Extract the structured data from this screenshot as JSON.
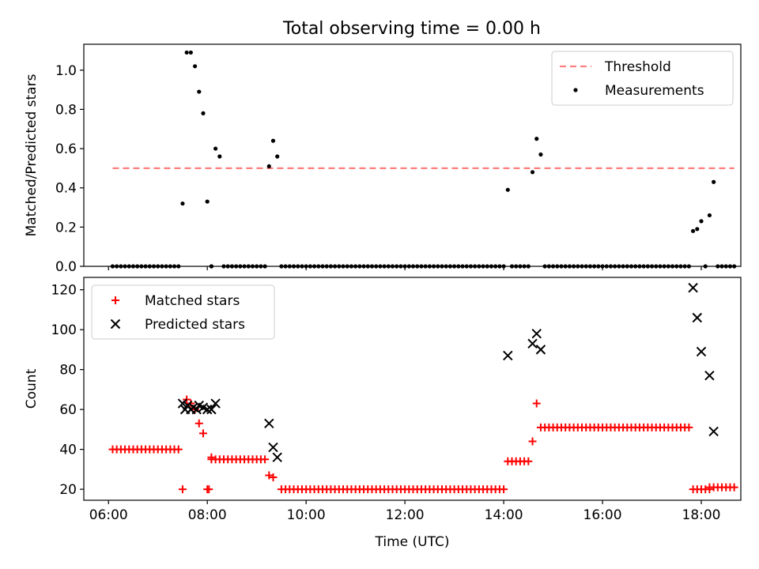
{
  "title": "Total observing time = 0.00 h",
  "chart_data": [
    {
      "type": "scatter",
      "ylabel": "Matched/Predicted stars",
      "xlim": [
        "06:00",
        "18:40"
      ],
      "ylim": [
        0,
        1.1
      ],
      "yticks": [
        0.0,
        0.2,
        0.4,
        0.6,
        0.8,
        1.0
      ],
      "ytick_labels": [
        "0.0",
        "0.2",
        "0.4",
        "0.6",
        "0.8",
        "1.0"
      ],
      "legend_placement": "top-right",
      "threshold": {
        "name": "Threshold",
        "value": 0.5,
        "x_range": [
          "06:05",
          "18:40"
        ],
        "color": "#ff7f7f",
        "style": "dashed"
      },
      "series": [
        {
          "name": "Measurements",
          "color": "#000000",
          "marker": "dot",
          "points": [
            [
              "07:30",
              0.32
            ],
            [
              "07:35",
              1.09
            ],
            [
              "07:40",
              1.09
            ],
            [
              "07:45",
              1.02
            ],
            [
              "07:50",
              0.89
            ],
            [
              "07:55",
              0.78
            ],
            [
              "08:00",
              0.33
            ],
            [
              "08:05",
              0.0
            ],
            [
              "08:10",
              0.6
            ],
            [
              "08:15",
              0.56
            ],
            [
              "09:15",
              0.51
            ],
            [
              "09:20",
              0.64
            ],
            [
              "09:25",
              0.56
            ],
            [
              "14:05",
              0.39
            ],
            [
              "14:35",
              0.48
            ],
            [
              "14:40",
              0.65
            ],
            [
              "14:45",
              0.57
            ],
            [
              "17:50",
              0.18
            ],
            [
              "17:55",
              0.19
            ],
            [
              "18:00",
              0.23
            ],
            [
              "18:10",
              0.26
            ],
            [
              "18:15",
              0.43
            ]
          ],
          "zero_runs": [
            [
              "06:05",
              "07:25"
            ],
            [
              "08:05",
              "08:05"
            ],
            [
              "08:20",
              "09:10"
            ],
            [
              "09:30",
              "14:00"
            ],
            [
              "14:10",
              "14:30"
            ],
            [
              "14:50",
              "17:45"
            ],
            [
              "18:05",
              "18:05"
            ],
            [
              "18:20",
              "18:40"
            ]
          ],
          "step_minutes": 5
        }
      ]
    },
    {
      "type": "scatter",
      "xlabel": "Time (UTC)",
      "ylabel": "Count",
      "xlim": [
        "06:00",
        "18:40"
      ],
      "ylim": [
        15,
        125
      ],
      "xticks": [
        "06:00",
        "08:00",
        "10:00",
        "12:00",
        "14:00",
        "16:00",
        "18:00"
      ],
      "yticks": [
        20,
        40,
        60,
        80,
        100,
        120
      ],
      "ytick_labels": [
        "20",
        "40",
        "60",
        "80",
        "100",
        "120"
      ],
      "legend_placement": "top-left",
      "series": [
        {
          "name": "Matched stars",
          "color": "#ff0000",
          "marker": "plus",
          "runs": [
            [
              "06:05",
              "07:25",
              40
            ],
            [
              "08:05",
              "09:10",
              35
            ],
            [
              "09:30",
              "14:00",
              20
            ],
            [
              "14:05",
              "14:30",
              34
            ],
            [
              "14:45",
              "17:45",
              51
            ],
            [
              "17:50",
              "18:10",
              20
            ],
            [
              "18:10",
              "18:40",
              21
            ]
          ],
          "points": [
            [
              "07:30",
              20
            ],
            [
              "07:35",
              65
            ],
            [
              "07:40",
              63
            ],
            [
              "07:45",
              60
            ],
            [
              "07:50",
              53
            ],
            [
              "07:55",
              48
            ],
            [
              "08:00",
              20
            ],
            [
              "08:02",
              20
            ],
            [
              "08:05",
              36
            ],
            [
              "09:15",
              27
            ],
            [
              "09:20",
              26
            ],
            [
              "14:35",
              44
            ],
            [
              "14:40",
              63
            ]
          ],
          "step_minutes": 5
        },
        {
          "name": "Predicted stars",
          "color": "#000000",
          "marker": "x",
          "points": [
            [
              "07:30",
              63
            ],
            [
              "07:33",
              60
            ],
            [
              "07:36",
              62
            ],
            [
              "07:40",
              60
            ],
            [
              "07:43",
              61
            ],
            [
              "07:47",
              60
            ],
            [
              "07:50",
              62
            ],
            [
              "07:55",
              61
            ],
            [
              "08:00",
              60
            ],
            [
              "08:05",
              60
            ],
            [
              "08:10",
              63
            ],
            [
              "09:15",
              53
            ],
            [
              "09:20",
              41
            ],
            [
              "09:25",
              36
            ],
            [
              "14:05",
              87
            ],
            [
              "14:35",
              93
            ],
            [
              "14:40",
              98
            ],
            [
              "14:45",
              90
            ],
            [
              "17:50",
              121
            ],
            [
              "17:55",
              106
            ],
            [
              "18:00",
              89
            ],
            [
              "18:10",
              77
            ],
            [
              "18:15",
              49
            ]
          ]
        }
      ]
    }
  ]
}
